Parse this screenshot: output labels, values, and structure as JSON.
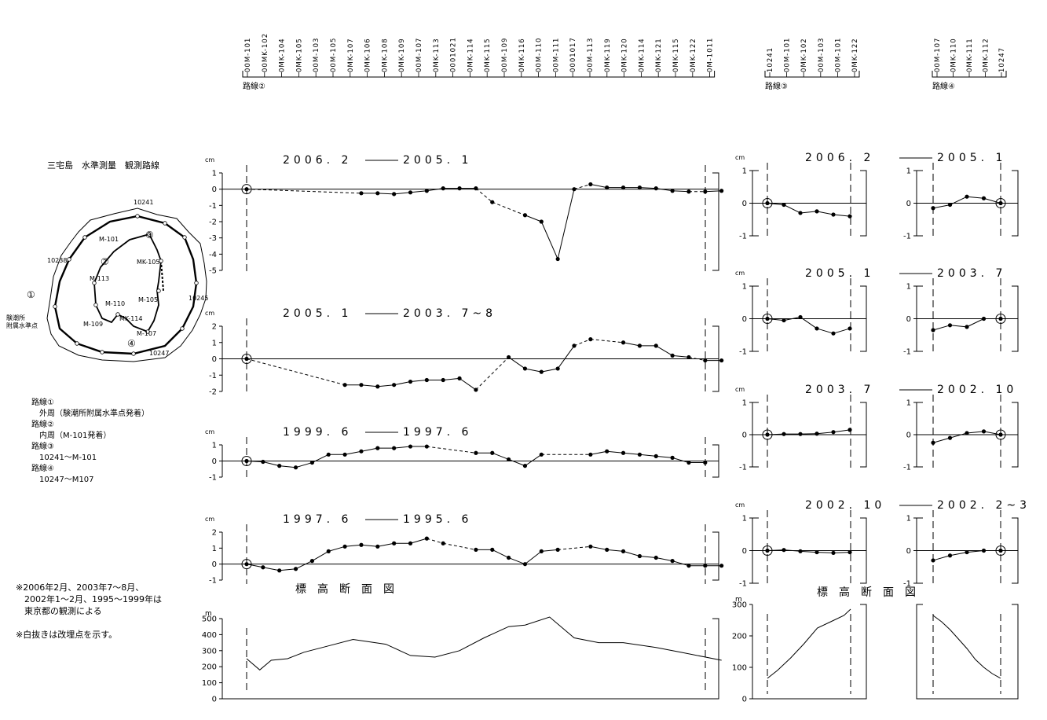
{
  "map": {
    "title": "三宅島　水準測量　観測路線",
    "labels": {
      "p10241": "10241",
      "p10238": "10238",
      "p10245": "10245",
      "p10247": "10247",
      "m101": "M-101",
      "mk105a": "MK-105",
      "m113": "M-113",
      "m110": "M-110",
      "m105": "M-105",
      "m109": "M-109",
      "mk114": "MK-114",
      "m107": "M-107",
      "tide1": "験潮所",
      "tide2": "附属水準点",
      "r1": "①",
      "r2": "②",
      "r3": "③",
      "r4": "④"
    },
    "legend": [
      "路線①",
      "　外周（験潮所附属水準点発着）",
      "路線②",
      "　内周（M-101発着）",
      "路線③",
      "　10241～M-101",
      "路線④",
      "　10247～M107"
    ],
    "notes": [
      "※2006年2月、2003年7～8月、",
      "　2002年1～2月、1995～1999年は",
      "　東京都の観測による",
      "",
      "※白抜きは改埋点を示す。"
    ]
  },
  "routes": {
    "route2": {
      "name": "路線②",
      "stations": [
        "00M-101",
        "00MK-102",
        "0MK-104",
        "0MK-105",
        "00M-103",
        "00M-105",
        "0MK-107",
        "0MK-106",
        "0MK-108",
        "0MK-109",
        "00M-107",
        "0MK-113",
        "0001021",
        "0MK-114",
        "0MK-115",
        "00M-109",
        "0MK-116",
        "00M-110",
        "00M-111",
        "0001017",
        "00M-113",
        "0MK-119",
        "0MK-120",
        "0MK-114",
        "0MK-121",
        "0MK-115",
        "0MK-122",
        "0M-1011"
      ]
    },
    "route3": {
      "name": "路線③",
      "stations": [
        "10241",
        "00M-101",
        "0MK-102",
        "00M-103",
        "00M-101",
        "0MK-122"
      ]
    },
    "route4": {
      "name": "路線④",
      "stations": [
        "00M-107",
        "0MK-110",
        "0MK-111",
        "0MK-112",
        "10247"
      ]
    }
  },
  "units": {
    "cm": "cm",
    "m": "m"
  },
  "profile_title_left": "標　高　断　面　図",
  "profile_title_right": "標　高　断　面　図",
  "periods": [
    {
      "a": "2006. 2",
      "b": "2005. 1"
    },
    {
      "a": "2005. 1",
      "b": "2003. 7~8"
    },
    {
      "a": "1999. 6",
      "b": "1997. 6"
    },
    {
      "a": "1997. 6",
      "b": "1995. 6"
    }
  ],
  "periods_right": [
    {
      "a": "2006. 2",
      "b": "2005. 1"
    },
    {
      "a": "2005. 1",
      "b": "2003. 7"
    },
    {
      "a": "2003. 7",
      "b": "2002. 10"
    },
    {
      "a": "2002. 10",
      "b": "2002. 2~3"
    }
  ],
  "chart_data": [
    {
      "type": "line",
      "route": "路線②",
      "title": "2006. 2 — 2005. 1",
      "ylabel": "cm",
      "ylim": [
        -5,
        1
      ],
      "yticks": [
        1,
        0,
        -1,
        -2,
        -3,
        -4,
        -5
      ],
      "x": [
        0,
        7,
        8,
        9,
        10,
        11,
        12,
        13,
        14,
        15,
        17,
        18,
        19,
        20,
        21,
        22,
        23,
        24,
        25,
        26,
        27,
        28,
        29
      ],
      "values": [
        0,
        -0.25,
        -0.25,
        -0.3,
        -0.2,
        -0.1,
        0.05,
        0.05,
        0.05,
        -0.8,
        -1.6,
        -2,
        -4.3,
        0,
        0.3,
        0.1,
        0.1,
        0.1,
        0.05,
        -0.1,
        -0.15,
        -0.15,
        -0.1
      ],
      "dashed_segments": [
        [
          0,
          1
        ],
        [
          14,
          15
        ],
        [
          20,
          21
        ],
        [
          27,
          28
        ]
      ]
    },
    {
      "type": "line",
      "route": "路線②",
      "title": "2005. 1 — 2003. 7~8",
      "ylabel": "cm",
      "ylim": [
        -2,
        2
      ],
      "yticks": [
        2,
        1,
        0,
        -1,
        -2
      ],
      "x": [
        0,
        6,
        7,
        8,
        9,
        10,
        11,
        12,
        13,
        14,
        16,
        17,
        18,
        19,
        20,
        21,
        23,
        24,
        25,
        26,
        27,
        28,
        29
      ],
      "values": [
        0,
        -1.6,
        -1.6,
        -1.7,
        -1.6,
        -1.4,
        -1.3,
        -1.3,
        -1.2,
        -1.9,
        0.1,
        -0.6,
        -0.8,
        -0.6,
        0.8,
        1.2,
        1,
        0.8,
        0.8,
        0.2,
        0.1,
        -0.1,
        -0.1
      ],
      "dashed_segments": [
        [
          0,
          1
        ],
        [
          14,
          15
        ],
        [
          20,
          21
        ],
        [
          27,
          28
        ]
      ]
    },
    {
      "type": "line",
      "route": "路線②",
      "title": "1999. 6 — 1997. 6",
      "ylabel": "cm",
      "ylim": [
        -1,
        1
      ],
      "yticks": [
        1,
        0,
        -1
      ],
      "x": [
        0,
        1,
        2,
        3,
        4,
        5,
        6,
        7,
        8,
        9,
        10,
        11,
        14,
        15,
        16,
        17,
        18,
        21,
        22,
        23,
        24,
        25,
        26,
        27,
        28
      ],
      "values": [
        0,
        -0.05,
        -0.3,
        -0.4,
        -0.1,
        0.4,
        0.4,
        0.6,
        0.8,
        0.8,
        0.9,
        0.9,
        0.5,
        0.5,
        0.1,
        -0.3,
        0.4,
        0.4,
        0.6,
        0.5,
        0.4,
        0.3,
        0.2,
        -0.1,
        -0.1
      ],
      "dashed_segments": [
        [
          11,
          14
        ],
        [
          18,
          21
        ]
      ]
    },
    {
      "type": "line",
      "route": "路線②",
      "title": "1997. 6 — 1995. 6",
      "ylabel": "cm",
      "ylim": [
        -1,
        2
      ],
      "yticks": [
        2,
        1,
        0,
        -1
      ],
      "x": [
        0,
        1,
        2,
        3,
        4,
        5,
        6,
        7,
        8,
        9,
        10,
        11,
        12,
        14,
        15,
        16,
        17,
        18,
        19,
        21,
        22,
        23,
        24,
        25,
        26,
        27,
        28,
        29
      ],
      "values": [
        0,
        -0.2,
        -0.4,
        -0.3,
        0.2,
        0.8,
        1.1,
        1.2,
        1.1,
        1.3,
        1.3,
        1.6,
        1.3,
        0.9,
        0.9,
        0.4,
        0,
        0.8,
        0.9,
        1.1,
        0.9,
        0.8,
        0.5,
        0.4,
        0.2,
        -0.1,
        -0.1,
        -0.1
      ],
      "dashed_segments": [
        [
          11,
          12
        ],
        [
          19,
          21
        ]
      ]
    },
    {
      "type": "line",
      "route": "路線③",
      "title": "2006. 2 — 2005. 1",
      "ylabel": "cm",
      "ylim": [
        -1,
        1
      ],
      "x": [
        0,
        1,
        2,
        3,
        4,
        5
      ],
      "values": [
        0,
        -0.05,
        -0.3,
        -0.25,
        -0.35,
        -0.4
      ]
    },
    {
      "type": "line",
      "route": "路線④",
      "title": "2006. 2 — 2005. 1",
      "ylim": [
        -1,
        1
      ],
      "x": [
        0,
        1,
        2,
        3,
        4
      ],
      "values": [
        -0.15,
        -0.05,
        0.2,
        0.15,
        0
      ]
    },
    {
      "type": "line",
      "route": "路線③",
      "title": "2005. 1 — 2003. 7",
      "ylabel": "cm",
      "ylim": [
        -1,
        1
      ],
      "x": [
        0,
        1,
        2,
        3,
        4,
        5
      ],
      "values": [
        0,
        -0.05,
        0.05,
        -0.3,
        -0.45,
        -0.3
      ]
    },
    {
      "type": "line",
      "route": "路線④",
      "title": "2005. 1 — 2003. 7",
      "ylim": [
        -1,
        1
      ],
      "x": [
        0,
        1,
        2,
        3,
        4
      ],
      "values": [
        -0.35,
        -0.2,
        -0.25,
        0,
        0
      ]
    },
    {
      "type": "line",
      "route": "路線③",
      "title": "2003. 7 — 2002. 10",
      "ylabel": "cm",
      "ylim": [
        -1,
        1
      ],
      "x": [
        0,
        1,
        2,
        3,
        4,
        5
      ],
      "values": [
        0,
        0.02,
        0.02,
        0.03,
        0.08,
        0.15
      ]
    },
    {
      "type": "line",
      "route": "路線④",
      "title": "2003. 7 — 2002. 10",
      "ylim": [
        -1,
        1
      ],
      "x": [
        0,
        1,
        2,
        3,
        4
      ],
      "values": [
        -0.25,
        -0.1,
        0.05,
        0.1,
        0
      ]
    },
    {
      "type": "line",
      "route": "路線③",
      "title": "2002. 10 — 2002. 2~3",
      "ylabel": "cm",
      "ylim": [
        -1,
        1
      ],
      "x": [
        0,
        1,
        2,
        3,
        4,
        5
      ],
      "values": [
        0,
        0.02,
        -0.02,
        -0.05,
        -0.07,
        -0.05
      ]
    },
    {
      "type": "line",
      "route": "路線④",
      "title": "2002. 10 — 2002. 2~3",
      "ylim": [
        -1,
        1
      ],
      "x": [
        0,
        1,
        2,
        3,
        4
      ],
      "values": [
        -0.3,
        -0.15,
        -0.05,
        0,
        0
      ]
    },
    {
      "type": "area",
      "route": "路線②",
      "title": "標　高　断　面　図",
      "ylabel": "m",
      "ylim": [
        0,
        500
      ],
      "yticks": [
        500,
        400,
        300,
        200,
        100,
        0
      ],
      "x": [
        0,
        0.8,
        1.5,
        2.5,
        3.5,
        5,
        6.5,
        8.5,
        10,
        11.5,
        13,
        14.5,
        16,
        17,
        18.5,
        20,
        21.5,
        23,
        25,
        26.5,
        29
      ],
      "values": [
        250,
        180,
        240,
        250,
        290,
        330,
        370,
        340,
        270,
        260,
        300,
        380,
        450,
        460,
        510,
        380,
        350,
        350,
        320,
        290,
        240
      ]
    },
    {
      "type": "area",
      "route": "路線③",
      "ylabel": "m",
      "ylim": [
        0,
        300
      ],
      "yticks": [
        300,
        200,
        100,
        0
      ],
      "x": [
        0,
        0.6,
        1.4,
        2.2,
        3,
        3.8,
        4.6,
        5
      ],
      "values": [
        65,
        90,
        130,
        175,
        225,
        245,
        265,
        285
      ]
    },
    {
      "type": "area",
      "route": "路線④",
      "ylim": [
        0,
        300
      ],
      "x": [
        0,
        0.5,
        1,
        1.5,
        2,
        2.5,
        3,
        3.5,
        4
      ],
      "values": [
        265,
        245,
        220,
        190,
        160,
        125,
        100,
        80,
        65
      ]
    }
  ]
}
